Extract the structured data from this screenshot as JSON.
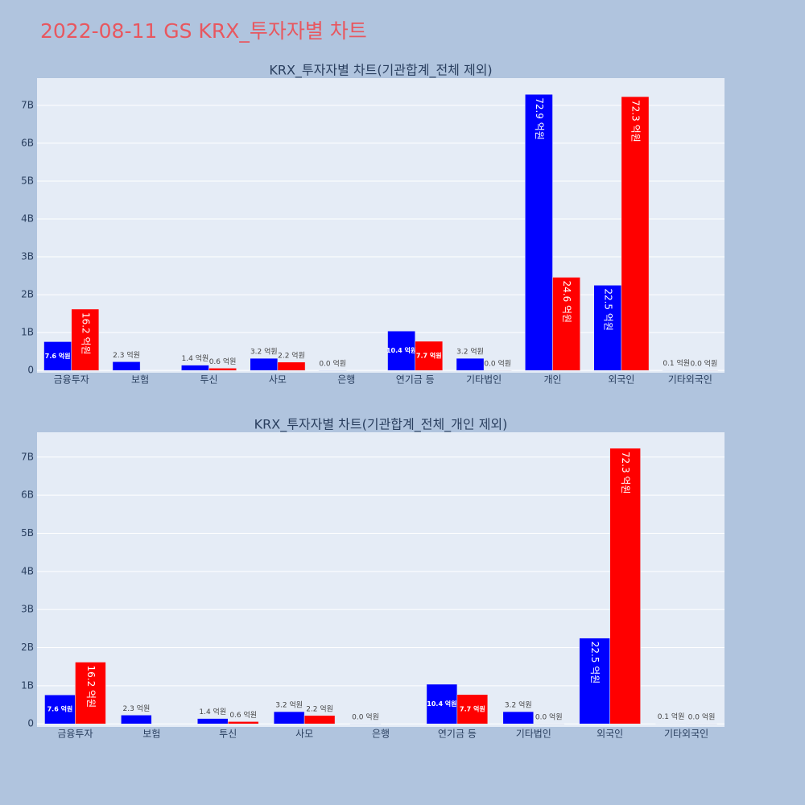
{
  "title": "2022-08-11 GS KRX_투자자별 차트",
  "chart_data": [
    {
      "type": "bar",
      "title": "KRX_투자자별 차트(기관합계_전체 제외)",
      "categories": [
        "금융투자",
        "보험",
        "투신",
        "사모",
        "은행",
        "연기금 등",
        "기타법인",
        "개인",
        "외국인",
        "기타외국인"
      ],
      "series": [
        {
          "color": "#0000ff",
          "values": [
            760000000,
            230000000,
            140000000,
            320000000,
            0,
            1040000000,
            320000000,
            7290000000,
            2250000000,
            10000000
          ],
          "value_labels": [
            "7.6 억원",
            "2.3 억원",
            "1.4 억원",
            "3.2 억원",
            "0.0 억원",
            "10.4 억원",
            "3.2 억원",
            "72.9 억원",
            "22.5 억원",
            "0.1 억원"
          ]
        },
        {
          "color": "#ff0000",
          "values": [
            1620000000,
            null,
            60000000,
            220000000,
            null,
            770000000,
            0,
            2460000000,
            7230000000,
            0
          ],
          "value_labels": [
            "16.2 억원",
            null,
            "0.6 억원",
            "2.2 억원",
            null,
            "7.7 억원",
            "0.0 억원",
            "24.6 억원",
            "72.3 억원",
            "0.0 억원"
          ]
        }
      ],
      "ylim": [
        -60000000,
        7720000000
      ],
      "yticks": [
        0,
        {
          "value": 1000000000,
          "label": "1B"
        },
        {
          "value": 2000000000,
          "label": "2B"
        },
        {
          "value": 3000000000,
          "label": "3B"
        },
        {
          "value": 4000000000,
          "label": "4B"
        },
        {
          "value": 5000000000,
          "label": "5B"
        },
        {
          "value": 6000000000,
          "label": "6B"
        },
        {
          "value": 7000000000,
          "label": "7B"
        }
      ],
      "grid": true
    },
    {
      "type": "bar",
      "title": "KRX_투자자별 차트(기관합계_전체_개인 제외)",
      "categories": [
        "금융투자",
        "보험",
        "투신",
        "사모",
        "은행",
        "연기금 등",
        "기타법인",
        "외국인",
        "기타외국인"
      ],
      "series": [
        {
          "color": "#0000ff",
          "values": [
            760000000,
            230000000,
            140000000,
            320000000,
            0,
            1040000000,
            320000000,
            2250000000,
            10000000
          ],
          "value_labels": [
            "7.6 억원",
            "2.3 억원",
            "1.4 억원",
            "3.2 억원",
            "0.0 억원",
            "10.4 억원",
            "3.2 억원",
            "22.5 억원",
            "0.1 억원"
          ]
        },
        {
          "color": "#ff0000",
          "values": [
            1620000000,
            null,
            60000000,
            220000000,
            null,
            770000000,
            0,
            7230000000,
            0
          ],
          "value_labels": [
            "16.2 억원",
            null,
            "0.6 억원",
            "2.2 억원",
            null,
            "7.7 억원",
            "0.0 억원",
            "72.3 억원",
            "0.0 억원"
          ]
        }
      ],
      "ylim": [
        -80000000,
        7650000000
      ],
      "yticks": [
        0,
        {
          "value": 1000000000,
          "label": "1B"
        },
        {
          "value": 2000000000,
          "label": "2B"
        },
        {
          "value": 3000000000,
          "label": "3B"
        },
        {
          "value": 4000000000,
          "label": "4B"
        },
        {
          "value": 5000000000,
          "label": "5B"
        },
        {
          "value": 6000000000,
          "label": "6B"
        },
        {
          "value": 7000000000,
          "label": "7B"
        }
      ],
      "grid": true
    }
  ]
}
